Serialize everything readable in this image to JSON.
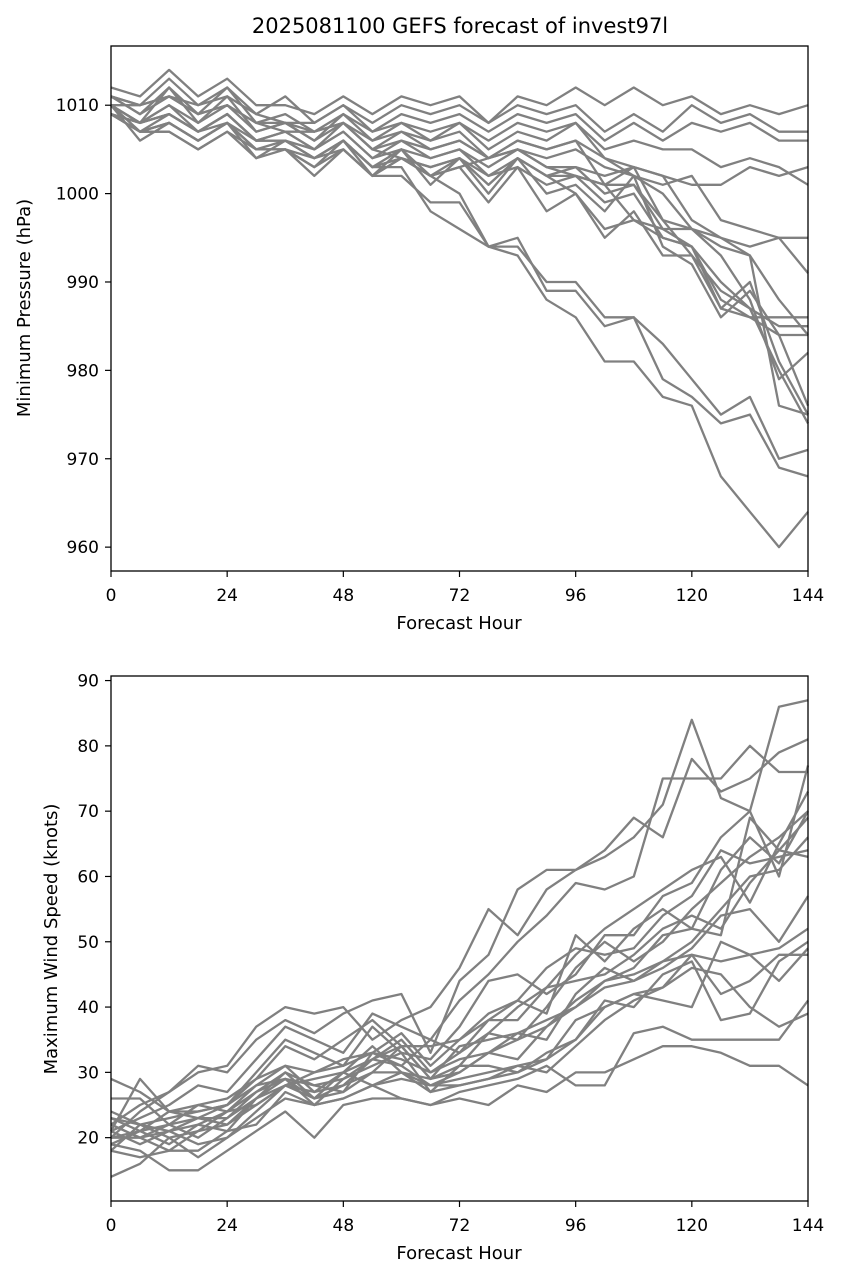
{
  "figure": {
    "title": "2025081100 GEFS forecast of invest97l"
  },
  "chart_data": [
    {
      "type": "line",
      "title": "",
      "xlabel": "Forecast Hour",
      "ylabel": "Minimum Pressure (hPa)",
      "xlim": [
        0,
        144
      ],
      "ylim": [
        957.3,
        1016.7
      ],
      "xticks": [
        0,
        24,
        48,
        72,
        96,
        120,
        144
      ],
      "yticks": [
        960,
        970,
        980,
        990,
        1000,
        1010
      ],
      "grid": false,
      "line_color": "#808080",
      "x": [
        0,
        6,
        12,
        18,
        24,
        30,
        36,
        42,
        48,
        54,
        60,
        66,
        72,
        78,
        84,
        90,
        96,
        102,
        108,
        114,
        120,
        126,
        132,
        138,
        144
      ],
      "series": [
        {
          "values": [
            1012,
            1011,
            1014,
            1011,
            1013,
            1010,
            1010,
            1009,
            1011,
            1009,
            1011,
            1010,
            1011,
            1008,
            1011,
            1010,
            1012,
            1010,
            1012,
            1010,
            1011,
            1009,
            1010,
            1009,
            1010
          ]
        },
        {
          "values": [
            1011,
            1010,
            1013,
            1010,
            1012,
            1009,
            1011,
            1008,
            1010,
            1008,
            1010,
            1009,
            1010,
            1008,
            1010,
            1009,
            1010,
            1007,
            1009,
            1007,
            1010,
            1008,
            1009,
            1007,
            1007
          ]
        },
        {
          "values": [
            1011,
            1009,
            1012,
            1009,
            1012,
            1008,
            1009,
            1007,
            1009,
            1007,
            1009,
            1008,
            1009,
            1007,
            1009,
            1008,
            1009,
            1006,
            1008,
            1006,
            1008,
            1007,
            1008,
            1006,
            1006
          ]
        },
        {
          "values": [
            1010,
            1010,
            1011,
            1010,
            1011,
            1009,
            1008,
            1008,
            1010,
            1007,
            1008,
            1007,
            1008,
            1006,
            1008,
            1007,
            1008,
            1005,
            1006,
            1005,
            1005,
            1003,
            1004,
            1003,
            1001
          ]
        },
        {
          "values": [
            1010,
            1008,
            1012,
            1008,
            1011,
            1007,
            1008,
            1006,
            1009,
            1006,
            1008,
            1006,
            1008,
            1005,
            1007,
            1006,
            1008,
            1004,
            1003,
            1002,
            1001,
            1001,
            1003,
            1002,
            1003
          ]
        },
        {
          "values": [
            1011,
            1009,
            1011,
            1009,
            1010,
            1008,
            1007,
            1007,
            1008,
            1006,
            1007,
            1006,
            1007,
            1004,
            1006,
            1005,
            1006,
            1004,
            1002,
            1001,
            1002,
            997,
            996,
            995,
            995
          ]
        },
        {
          "values": [
            1010,
            1008,
            1010,
            1008,
            1010,
            1007,
            1008,
            1006,
            1008,
            1005,
            1006,
            1005,
            1006,
            1004,
            1005,
            1004,
            1005,
            1003,
            1002,
            1000,
            996,
            995,
            994,
            995,
            991
          ]
        },
        {
          "values": [
            1009,
            1008,
            1010,
            1007,
            1009,
            1006,
            1007,
            1005,
            1007,
            1004,
            1006,
            1004,
            1005,
            1003,
            1005,
            1003,
            1003,
            1002,
            1003,
            997,
            996,
            994,
            993,
            988,
            984
          ]
        },
        {
          "values": [
            1010,
            1007,
            1009,
            1007,
            1009,
            1006,
            1006,
            1005,
            1007,
            1004,
            1005,
            1004,
            1005,
            1002,
            1004,
            1002,
            1002,
            1001,
            1001,
            997,
            993,
            989,
            987,
            985,
            985
          ]
        },
        {
          "values": [
            1009,
            1007,
            1008,
            1006,
            1008,
            1005,
            1006,
            1004,
            1006,
            1003,
            1004,
            1003,
            1004,
            1002,
            1003,
            1001,
            1002,
            999,
            1000,
            995,
            994,
            988,
            986,
            984,
            984
          ]
        },
        {
          "values": [
            1010,
            1006,
            1008,
            1006,
            1008,
            1005,
            1005,
            1003,
            1006,
            1003,
            1005,
            1002,
            1004,
            1001,
            1004,
            1000,
            1001,
            998,
            1002,
            994,
            992,
            986,
            989,
            984,
            976
          ]
        },
        {
          "values": [
            1009,
            1007,
            1007,
            1005,
            1007,
            1004,
            1005,
            1002,
            1005,
            1002,
            1004,
            1002,
            1003,
            999,
            1003,
            998,
            1000,
            995,
            998,
            993,
            993,
            987,
            986,
            986,
            986
          ]
        },
        {
          "values": [
            1009,
            1007,
            1007,
            1005,
            1007,
            1005,
            1005,
            1004,
            1005,
            1002,
            1005,
            1001,
            1004,
            1000,
            1004,
            1002,
            1003,
            1000,
            1001,
            996,
            996,
            993,
            988,
            979,
            982
          ]
        },
        {
          "values": [
            1010,
            1008,
            1009,
            1007,
            1009,
            1006,
            1007,
            1005,
            1008,
            1005,
            1004,
            1003,
            1004,
            1001,
            1004,
            1002,
            1000,
            996,
            997,
            995,
            994,
            990,
            987,
            980,
            974
          ]
        },
        {
          "values": [
            1010,
            1007,
            1008,
            1006,
            1008,
            1004,
            1006,
            1004,
            1006,
            1002,
            1004,
            1002,
            1003,
            1004,
            1005,
            1003,
            1002,
            1001,
            997,
            996,
            994,
            987,
            990,
            981,
            975
          ]
        },
        {
          "values": [
            1010,
            1008,
            1009,
            1007,
            1009,
            1006,
            1006,
            1004,
            1006,
            1003,
            1004,
            1002,
            1000,
            994,
            995,
            989,
            989,
            985,
            986,
            979,
            977,
            974,
            975,
            969,
            968
          ]
        },
        {
          "values": [
            1009,
            1007,
            1008,
            1006,
            1008,
            1005,
            1005,
            1003,
            1005,
            1002,
            1002,
            999,
            999,
            994,
            994,
            990,
            990,
            986,
            986,
            983,
            979,
            975,
            977,
            970,
            971
          ]
        },
        {
          "values": [
            1009,
            1008,
            1009,
            1007,
            1008,
            1006,
            1006,
            1004,
            1006,
            1003,
            1003,
            998,
            996,
            994,
            993,
            988,
            986,
            981,
            981,
            977,
            976,
            968,
            964,
            960,
            964
          ]
        },
        {
          "values": [
            1011,
            1010,
            1011,
            1009,
            1010,
            1008,
            1008,
            1007,
            1008,
            1005,
            1007,
            1005,
            1006,
            1004,
            1006,
            1005,
            1006,
            1001,
            1003,
            1002,
            997,
            995,
            993,
            976,
            975
          ]
        }
      ]
    },
    {
      "type": "line",
      "title": "",
      "xlabel": "Forecast Hour",
      "ylabel": "Maximum Wind Speed (knots)",
      "xlim": [
        0,
        144
      ],
      "ylim": [
        10.3,
        90.7
      ],
      "xticks": [
        0,
        24,
        48,
        72,
        96,
        120,
        144
      ],
      "yticks": [
        20,
        30,
        40,
        50,
        60,
        70,
        80,
        90
      ],
      "grid": false,
      "line_color": "#808080",
      "x": [
        0,
        6,
        12,
        18,
        24,
        30,
        36,
        42,
        48,
        54,
        60,
        66,
        72,
        78,
        84,
        90,
        96,
        102,
        108,
        114,
        120,
        126,
        132,
        138,
        144
      ],
      "series": [
        {
          "values": [
            22,
            25,
            27,
            30,
            31,
            37,
            40,
            39,
            40,
            35,
            38,
            40,
            46,
            55,
            51,
            58,
            61,
            63,
            66,
            71,
            84,
            72,
            70,
            86,
            87
          ]
        },
        {
          "values": [
            20,
            24,
            27,
            31,
            30,
            35,
            38,
            36,
            39,
            41,
            42,
            33,
            44,
            48,
            58,
            61,
            61,
            64,
            69,
            66,
            78,
            73,
            75,
            79,
            81
          ]
        },
        {
          "values": [
            21,
            23,
            25,
            28,
            27,
            32,
            37,
            35,
            33,
            39,
            37,
            35,
            41,
            45,
            50,
            54,
            59,
            58,
            60,
            75,
            75,
            75,
            80,
            76,
            76
          ]
        },
        {
          "values": [
            24,
            22,
            21,
            23,
            25,
            30,
            35,
            33,
            31,
            37,
            33,
            32,
            37,
            44,
            45,
            42,
            45,
            51,
            51,
            57,
            59,
            66,
            70,
            60,
            77
          ]
        },
        {
          "values": [
            19,
            21,
            24,
            25,
            24,
            28,
            31,
            30,
            32,
            33,
            36,
            31,
            35,
            39,
            41,
            39,
            51,
            47,
            52,
            55,
            52,
            51,
            69,
            64,
            69
          ]
        },
        {
          "values": [
            23,
            21,
            19,
            22,
            21,
            26,
            30,
            28,
            29,
            32,
            35,
            30,
            33,
            36,
            40,
            43,
            48,
            52,
            55,
            58,
            61,
            63,
            56,
            65,
            73
          ]
        },
        {
          "values": [
            18,
            22,
            23,
            24,
            25,
            29,
            31,
            27,
            28,
            30,
            34,
            34,
            35,
            38,
            41,
            46,
            49,
            48,
            49,
            54,
            57,
            64,
            62,
            63,
            64
          ]
        },
        {
          "values": [
            22,
            20,
            22,
            20,
            23,
            27,
            30,
            26,
            28,
            32,
            31,
            35,
            33,
            38,
            38,
            43,
            44,
            45,
            48,
            52,
            54,
            52,
            59,
            64,
            63
          ]
        },
        {
          "values": [
            21,
            19,
            21,
            22,
            24,
            25,
            28,
            29,
            30,
            32,
            34,
            29,
            34,
            35,
            36,
            38,
            40,
            44,
            46,
            51,
            52,
            61,
            66,
            62,
            70
          ]
        },
        {
          "values": [
            20,
            20,
            18,
            21,
            22,
            26,
            29,
            28,
            27,
            33,
            32,
            30,
            32,
            33,
            35,
            37,
            40,
            43,
            44,
            47,
            50,
            55,
            60,
            61,
            66
          ]
        },
        {
          "values": [
            26,
            26,
            22,
            25,
            26,
            29,
            34,
            32,
            35,
            38,
            34,
            29,
            31,
            36,
            35,
            40,
            46,
            50,
            47,
            50,
            55,
            59,
            63,
            66,
            70
          ]
        },
        {
          "values": [
            29,
            27,
            24,
            23,
            23,
            26,
            28,
            30,
            31,
            33,
            31,
            28,
            30,
            33,
            36,
            35,
            42,
            46,
            44,
            46,
            49,
            54,
            55,
            50,
            57
          ]
        },
        {
          "values": [
            20,
            21,
            22,
            23,
            22,
            25,
            28,
            27,
            30,
            34,
            30,
            29,
            30,
            33,
            32,
            37,
            41,
            44,
            45,
            47,
            48,
            47,
            48,
            44,
            49
          ]
        },
        {
          "values": [
            23,
            22,
            20,
            21,
            24,
            27,
            29,
            25,
            29,
            31,
            33,
            27,
            31,
            31,
            30,
            32,
            38,
            40,
            42,
            43,
            48,
            42,
            44,
            48,
            48
          ]
        },
        {
          "values": [
            22,
            20,
            21,
            19,
            20,
            24,
            28,
            26,
            27,
            30,
            30,
            28,
            28,
            29,
            30,
            33,
            35,
            40,
            42,
            41,
            40,
            50,
            48,
            49,
            52
          ]
        },
        {
          "values": [
            18,
            17,
            18,
            18,
            21,
            22,
            27,
            25,
            26,
            28,
            29,
            28,
            29,
            30,
            31,
            32,
            35,
            41,
            40,
            45,
            47,
            38,
            39,
            47,
            50
          ]
        },
        {
          "values": [
            14,
            16,
            20,
            17,
            20,
            23,
            26,
            25,
            26,
            28,
            30,
            27,
            28,
            29,
            31,
            30,
            34,
            38,
            41,
            43,
            46,
            45,
            40,
            37,
            39
          ]
        },
        {
          "values": [
            19,
            18,
            15,
            15,
            18,
            21,
            24,
            20,
            25,
            26,
            26,
            25,
            27,
            28,
            29,
            31,
            28,
            28,
            36,
            37,
            35,
            35,
            35,
            35,
            41
          ]
        },
        {
          "values": [
            21,
            29,
            24,
            24,
            25,
            28,
            29,
            26,
            30,
            28,
            26,
            25,
            26,
            25,
            28,
            27,
            30,
            30,
            32,
            34,
            34,
            33,
            31,
            31,
            28
          ]
        }
      ]
    }
  ]
}
